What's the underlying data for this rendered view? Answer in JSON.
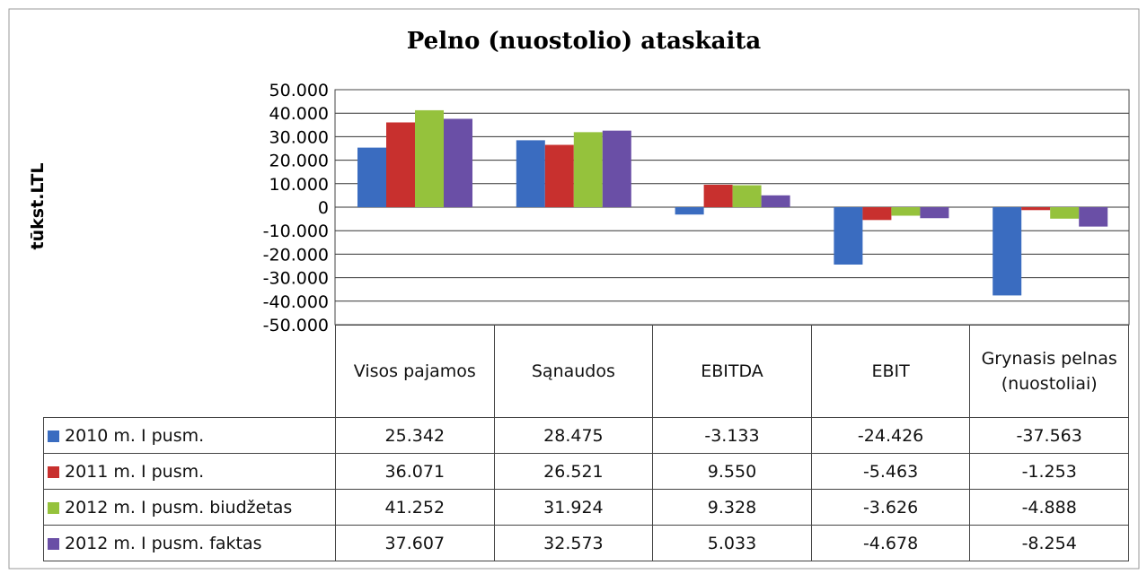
{
  "chart_data": {
    "type": "bar",
    "title": "Pelno (nuostolio) ataskaita",
    "ylabel": "tūkst.LTL",
    "categories": [
      "Visos pajamos",
      "Sąnaudos",
      "EBITDA",
      "EBIT",
      "Grynasis pelnas (nuostoliai)"
    ],
    "series": [
      {
        "name": "2010 m. I pusm.",
        "color": "#3a6cc0",
        "values": [
          25342,
          28475,
          -3133,
          -24426,
          -37563
        ],
        "value_labels": [
          "25.342",
          "28.475",
          "-3.133",
          "-24.426",
          "-37.563"
        ]
      },
      {
        "name": "2011 m. I pusm.",
        "color": "#c8302e",
        "values": [
          36071,
          26521,
          9550,
          -5463,
          -1253
        ],
        "value_labels": [
          "36.071",
          "26.521",
          "9.550",
          "-5.463",
          "-1.253"
        ]
      },
      {
        "name": "2012 m. I pusm. biudžetas",
        "color": "#95c23c",
        "values": [
          41252,
          31924,
          9328,
          -3626,
          -4888
        ],
        "value_labels": [
          "41.252",
          "31.924",
          "9.328",
          "-3.626",
          "-4.888"
        ]
      },
      {
        "name": "2012 m. I pusm. faktas",
        "color": "#6a4fa6",
        "values": [
          37607,
          32573,
          5033,
          -4678,
          -8254
        ],
        "value_labels": [
          "37.607",
          "32.573",
          "5.033",
          "-4.678",
          "-8.254"
        ]
      }
    ],
    "ylim": [
      -50000,
      50000
    ],
    "yticks": [
      {
        "value": -50000,
        "label": "-50.000"
      },
      {
        "value": -40000,
        "label": "-40.000"
      },
      {
        "value": -30000,
        "label": "-30.000"
      },
      {
        "value": -20000,
        "label": "-20.000"
      },
      {
        "value": -10000,
        "label": "-10.000"
      },
      0,
      {
        "value": 10000,
        "label": "10.000"
      },
      {
        "value": 20000,
        "label": "20.000"
      },
      {
        "value": 30000,
        "label": "30.000"
      },
      {
        "value": 40000,
        "label": "40.000"
      },
      {
        "value": 50000,
        "label": "50.000"
      }
    ],
    "grid": true
  }
}
